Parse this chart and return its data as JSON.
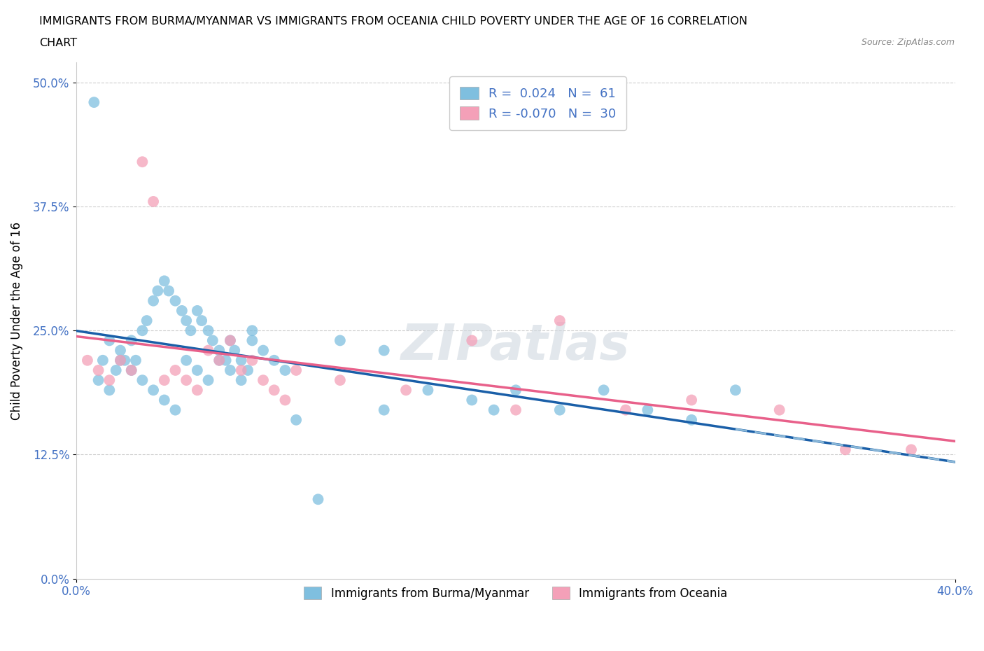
{
  "title_line1": "IMMIGRANTS FROM BURMA/MYANMAR VS IMMIGRANTS FROM OCEANIA CHILD POVERTY UNDER THE AGE OF 16 CORRELATION",
  "title_line2": "CHART",
  "source_text": "Source: ZipAtlas.com",
  "ylabel": "Child Poverty Under the Age of 16",
  "xlim": [
    0.0,
    0.4
  ],
  "ylim": [
    0.0,
    0.52
  ],
  "yticks": [
    0.0,
    0.125,
    0.25,
    0.375,
    0.5
  ],
  "ytick_labels": [
    "0.0%",
    "12.5%",
    "25.0%",
    "37.5%",
    "50.0%"
  ],
  "grid_color": "#cccccc",
  "watermark": "ZIPatlas",
  "legend_R1": "R =  0.024",
  "legend_N1": "N =  61",
  "legend_R2": "R = -0.070",
  "legend_N2": "N =  30",
  "color_blue": "#7fbfdf",
  "color_pink": "#f4a0b8",
  "color_blue_line": "#1a5fa8",
  "color_pink_line": "#e8608a",
  "color_blue_line_ext": "#8ab8d8",
  "legend_label1": "Immigrants from Burma/Myanmar",
  "legend_label2": "Immigrants from Oceania",
  "tick_color": "#4472c4",
  "blue_x": [
    0.008,
    0.012,
    0.015,
    0.018,
    0.02,
    0.022,
    0.025,
    0.027,
    0.03,
    0.032,
    0.035,
    0.037,
    0.04,
    0.042,
    0.045,
    0.048,
    0.05,
    0.052,
    0.055,
    0.057,
    0.06,
    0.062,
    0.065,
    0.068,
    0.07,
    0.072,
    0.075,
    0.078,
    0.08,
    0.085,
    0.09,
    0.095,
    0.01,
    0.015,
    0.02,
    0.025,
    0.03,
    0.035,
    0.04,
    0.045,
    0.05,
    0.055,
    0.06,
    0.065,
    0.07,
    0.075,
    0.08,
    0.12,
    0.14,
    0.16,
    0.18,
    0.2,
    0.22,
    0.24,
    0.26,
    0.28,
    0.3,
    0.14,
    0.19,
    0.1,
    0.11
  ],
  "blue_y": [
    0.48,
    0.22,
    0.24,
    0.21,
    0.23,
    0.22,
    0.24,
    0.22,
    0.25,
    0.26,
    0.28,
    0.29,
    0.3,
    0.29,
    0.28,
    0.27,
    0.26,
    0.25,
    0.27,
    0.26,
    0.25,
    0.24,
    0.23,
    0.22,
    0.24,
    0.23,
    0.22,
    0.21,
    0.24,
    0.23,
    0.22,
    0.21,
    0.2,
    0.19,
    0.22,
    0.21,
    0.2,
    0.19,
    0.18,
    0.17,
    0.22,
    0.21,
    0.2,
    0.22,
    0.21,
    0.2,
    0.25,
    0.24,
    0.23,
    0.19,
    0.18,
    0.19,
    0.17,
    0.19,
    0.17,
    0.16,
    0.19,
    0.17,
    0.17,
    0.16,
    0.08
  ],
  "pink_x": [
    0.005,
    0.01,
    0.015,
    0.02,
    0.025,
    0.03,
    0.035,
    0.04,
    0.045,
    0.05,
    0.055,
    0.06,
    0.065,
    0.07,
    0.075,
    0.08,
    0.085,
    0.09,
    0.095,
    0.1,
    0.12,
    0.15,
    0.18,
    0.2,
    0.22,
    0.25,
    0.28,
    0.32,
    0.35,
    0.38
  ],
  "pink_y": [
    0.22,
    0.21,
    0.2,
    0.22,
    0.21,
    0.42,
    0.38,
    0.2,
    0.21,
    0.2,
    0.19,
    0.23,
    0.22,
    0.24,
    0.21,
    0.22,
    0.2,
    0.19,
    0.18,
    0.21,
    0.2,
    0.19,
    0.24,
    0.17,
    0.26,
    0.17,
    0.18,
    0.17,
    0.13,
    0.13
  ]
}
